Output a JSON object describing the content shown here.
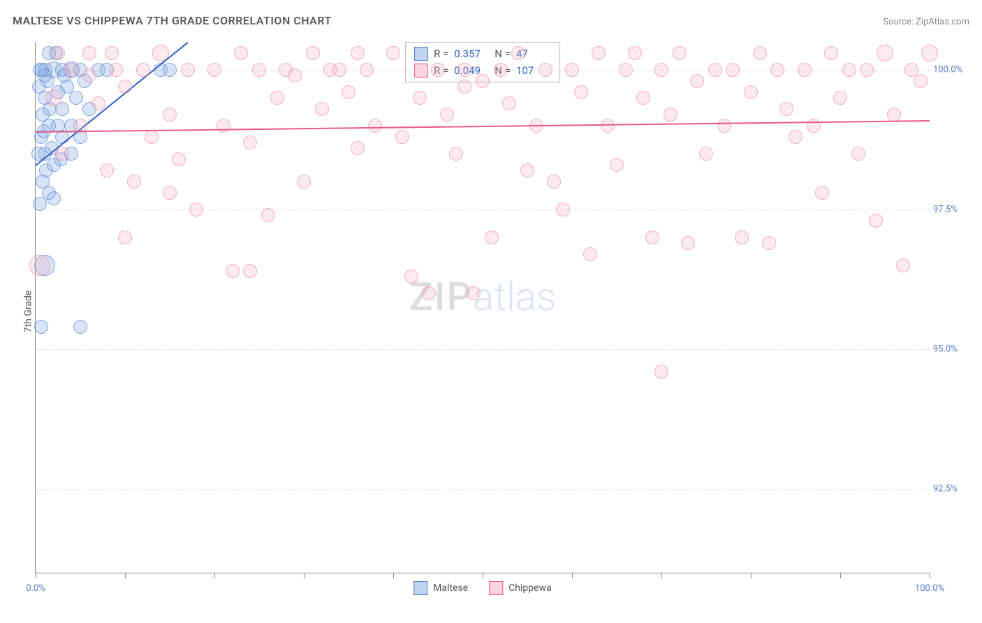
{
  "header": {
    "title": "MALTESE VS CHIPPEWA 7TH GRADE CORRELATION CHART",
    "source": "Source: ZipAtlas.com"
  },
  "chart": {
    "type": "scatter",
    "ylabel": "7th Grade",
    "xlim": [
      0,
      100
    ],
    "ylim": [
      91.0,
      100.5
    ],
    "xtick_positions": [
      0,
      10,
      20,
      30,
      40,
      50,
      60,
      70,
      80,
      90,
      100
    ],
    "xtick_labels": {
      "0": "0.0%",
      "100": "100.0%"
    },
    "ytick_positions": [
      92.5,
      95.0,
      97.5,
      100.0
    ],
    "ytick_labels": [
      "92.5%",
      "95.0%",
      "97.5%",
      "100.0%"
    ],
    "background_color": "#ffffff",
    "grid_color": "#dddddd",
    "axis_color": "#888888",
    "marker_base_radius": 9,
    "series": [
      {
        "name": "Maltese",
        "color_fill": "rgba(130,170,230,0.3)",
        "color_stroke": "rgba(100,140,210,0.7)",
        "trend_color": "#2c5fc7",
        "R": 0.357,
        "N": 47,
        "trend": {
          "x0": 0,
          "y0": 98.3,
          "x1": 17,
          "y1": 100.5
        },
        "points": [
          {
            "x": 0.5,
            "y": 100.0,
            "r": 9
          },
          {
            "x": 1.0,
            "y": 99.5,
            "r": 9
          },
          {
            "x": 0.8,
            "y": 99.2,
            "r": 9
          },
          {
            "x": 1.3,
            "y": 99.8,
            "r": 9
          },
          {
            "x": 1.5,
            "y": 99.0,
            "r": 9
          },
          {
            "x": 2.0,
            "y": 100.0,
            "r": 11
          },
          {
            "x": 2.5,
            "y": 99.6,
            "r": 9
          },
          {
            "x": 0.6,
            "y": 98.8,
            "r": 9
          },
          {
            "x": 1.0,
            "y": 98.5,
            "r": 9
          },
          {
            "x": 1.2,
            "y": 98.2,
            "r": 9
          },
          {
            "x": 1.8,
            "y": 98.6,
            "r": 9
          },
          {
            "x": 3.0,
            "y": 100.0,
            "r": 9
          },
          {
            "x": 3.5,
            "y": 99.7,
            "r": 9
          },
          {
            "x": 4.0,
            "y": 100.0,
            "r": 11
          },
          {
            "x": 4.5,
            "y": 99.5,
            "r": 9
          },
          {
            "x": 5.0,
            "y": 100.0,
            "r": 9
          },
          {
            "x": 5.5,
            "y": 99.8,
            "r": 9
          },
          {
            "x": 6.0,
            "y": 99.3,
            "r": 9
          },
          {
            "x": 7.0,
            "y": 100.0,
            "r": 9
          },
          {
            "x": 8.0,
            "y": 100.0,
            "r": 9
          },
          {
            "x": 0.8,
            "y": 98.0,
            "r": 9
          },
          {
            "x": 1.5,
            "y": 97.8,
            "r": 9
          },
          {
            "x": 2.0,
            "y": 98.3,
            "r": 9
          },
          {
            "x": 2.5,
            "y": 99.0,
            "r": 9
          },
          {
            "x": 3.0,
            "y": 98.8,
            "r": 9
          },
          {
            "x": 0.5,
            "y": 97.6,
            "r": 9
          },
          {
            "x": 1.0,
            "y": 96.5,
            "r": 14
          },
          {
            "x": 0.6,
            "y": 95.4,
            "r": 9
          },
          {
            "x": 5.0,
            "y": 95.4,
            "r": 9
          },
          {
            "x": 0.4,
            "y": 99.7,
            "r": 9
          },
          {
            "x": 0.7,
            "y": 100.0,
            "r": 9
          },
          {
            "x": 1.1,
            "y": 100.0,
            "r": 9
          },
          {
            "x": 2.3,
            "y": 100.3,
            "r": 9
          },
          {
            "x": 3.0,
            "y": 99.3,
            "r": 9
          },
          {
            "x": 4.0,
            "y": 99.0,
            "r": 9
          },
          {
            "x": 5.0,
            "y": 98.8,
            "r": 9
          },
          {
            "x": 4.0,
            "y": 98.5,
            "r": 9
          },
          {
            "x": 1.0,
            "y": 99.9,
            "r": 9
          },
          {
            "x": 1.5,
            "y": 100.3,
            "r": 9
          },
          {
            "x": 2.8,
            "y": 98.4,
            "r": 9
          },
          {
            "x": 3.2,
            "y": 99.9,
            "r": 9
          },
          {
            "x": 0.3,
            "y": 98.5,
            "r": 9
          },
          {
            "x": 14.0,
            "y": 100.0,
            "r": 9
          },
          {
            "x": 15.0,
            "y": 100.0,
            "r": 9
          },
          {
            "x": 2.0,
            "y": 97.7,
            "r": 9
          },
          {
            "x": 0.9,
            "y": 98.9,
            "r": 9
          },
          {
            "x": 1.6,
            "y": 99.3,
            "r": 9
          }
        ]
      },
      {
        "name": "Chippewa",
        "color_fill": "rgba(245,170,190,0.25)",
        "color_stroke": "rgba(235,130,160,0.6)",
        "trend_color": "#e85a8a",
        "R": 0.049,
        "N": 107,
        "trend": {
          "x0": 0,
          "y0": 98.9,
          "x1": 100,
          "y1": 99.1
        },
        "points": [
          {
            "x": 0.5,
            "y": 96.5,
            "r": 14
          },
          {
            "x": 2,
            "y": 99.5,
            "r": 11
          },
          {
            "x": 3,
            "y": 98.5,
            "r": 9
          },
          {
            "x": 4,
            "y": 100,
            "r": 9
          },
          {
            "x": 5,
            "y": 99.0,
            "r": 9
          },
          {
            "x": 6,
            "y": 100.3,
            "r": 9
          },
          {
            "x": 7,
            "y": 99.4,
            "r": 9
          },
          {
            "x": 8,
            "y": 98.2,
            "r": 9
          },
          {
            "x": 9,
            "y": 100,
            "r": 9
          },
          {
            "x": 10,
            "y": 99.7,
            "r": 9
          },
          {
            "x": 11,
            "y": 98.0,
            "r": 9
          },
          {
            "x": 12,
            "y": 100,
            "r": 9
          },
          {
            "x": 13,
            "y": 98.8,
            "r": 9
          },
          {
            "x": 14,
            "y": 100.3,
            "r": 11
          },
          {
            "x": 15,
            "y": 99.2,
            "r": 9
          },
          {
            "x": 16,
            "y": 98.4,
            "r": 9
          },
          {
            "x": 17,
            "y": 100,
            "r": 9
          },
          {
            "x": 18,
            "y": 97.5,
            "r": 9
          },
          {
            "x": 20,
            "y": 100,
            "r": 9
          },
          {
            "x": 21,
            "y": 99.0,
            "r": 9
          },
          {
            "x": 22,
            "y": 96.4,
            "r": 9
          },
          {
            "x": 23,
            "y": 100.3,
            "r": 9
          },
          {
            "x": 24,
            "y": 98.7,
            "r": 9
          },
          {
            "x": 25,
            "y": 100,
            "r": 9
          },
          {
            "x": 26,
            "y": 97.4,
            "r": 9
          },
          {
            "x": 27,
            "y": 99.5,
            "r": 9
          },
          {
            "x": 28,
            "y": 100,
            "r": 9
          },
          {
            "x": 29,
            "y": 99.9,
            "r": 9
          },
          {
            "x": 30,
            "y": 98.0,
            "r": 9
          },
          {
            "x": 31,
            "y": 100.3,
            "r": 9
          },
          {
            "x": 32,
            "y": 99.3,
            "r": 9
          },
          {
            "x": 33,
            "y": 100,
            "r": 9
          },
          {
            "x": 34,
            "y": 100,
            "r": 9
          },
          {
            "x": 35,
            "y": 99.6,
            "r": 9
          },
          {
            "x": 36,
            "y": 98.6,
            "r": 9
          },
          {
            "x": 37,
            "y": 100,
            "r": 9
          },
          {
            "x": 38,
            "y": 99.0,
            "r": 9
          },
          {
            "x": 40,
            "y": 100.3,
            "r": 9
          },
          {
            "x": 41,
            "y": 98.8,
            "r": 9
          },
          {
            "x": 42,
            "y": 96.3,
            "r": 9
          },
          {
            "x": 43,
            "y": 99.5,
            "r": 9
          },
          {
            "x": 44,
            "y": 96.0,
            "r": 9
          },
          {
            "x": 45,
            "y": 100,
            "r": 9
          },
          {
            "x": 46,
            "y": 99.2,
            "r": 9
          },
          {
            "x": 47,
            "y": 98.5,
            "r": 9
          },
          {
            "x": 48,
            "y": 100,
            "r": 9
          },
          {
            "x": 49,
            "y": 96.0,
            "r": 9
          },
          {
            "x": 50,
            "y": 99.8,
            "r": 9
          },
          {
            "x": 51,
            "y": 97.0,
            "r": 9
          },
          {
            "x": 52,
            "y": 100,
            "r": 9
          },
          {
            "x": 53,
            "y": 99.4,
            "r": 9
          },
          {
            "x": 54,
            "y": 100.3,
            "r": 9
          },
          {
            "x": 55,
            "y": 98.2,
            "r": 9
          },
          {
            "x": 56,
            "y": 99.0,
            "r": 9
          },
          {
            "x": 57,
            "y": 100,
            "r": 9
          },
          {
            "x": 58,
            "y": 98.0,
            "r": 9
          },
          {
            "x": 59,
            "y": 97.5,
            "r": 9
          },
          {
            "x": 60,
            "y": 100,
            "r": 9
          },
          {
            "x": 61,
            "y": 99.6,
            "r": 9
          },
          {
            "x": 62,
            "y": 96.7,
            "r": 9
          },
          {
            "x": 63,
            "y": 100.3,
            "r": 9
          },
          {
            "x": 64,
            "y": 99.0,
            "r": 9
          },
          {
            "x": 65,
            "y": 98.3,
            "r": 9
          },
          {
            "x": 66,
            "y": 100,
            "r": 9
          },
          {
            "x": 68,
            "y": 99.5,
            "r": 9
          },
          {
            "x": 69,
            "y": 97.0,
            "r": 9
          },
          {
            "x": 70,
            "y": 100,
            "r": 9
          },
          {
            "x": 70,
            "y": 94.6,
            "r": 9
          },
          {
            "x": 71,
            "y": 99.2,
            "r": 9
          },
          {
            "x": 72,
            "y": 100.3,
            "r": 9
          },
          {
            "x": 73,
            "y": 96.9,
            "r": 9
          },
          {
            "x": 74,
            "y": 99.8,
            "r": 9
          },
          {
            "x": 75,
            "y": 98.5,
            "r": 9
          },
          {
            "x": 76,
            "y": 100,
            "r": 9
          },
          {
            "x": 77,
            "y": 99.0,
            "r": 9
          },
          {
            "x": 78,
            "y": 100,
            "r": 9
          },
          {
            "x": 79,
            "y": 97.0,
            "r": 9
          },
          {
            "x": 80,
            "y": 99.6,
            "r": 9
          },
          {
            "x": 81,
            "y": 100.3,
            "r": 9
          },
          {
            "x": 82,
            "y": 96.9,
            "r": 9
          },
          {
            "x": 83,
            "y": 100,
            "r": 9
          },
          {
            "x": 84,
            "y": 99.3,
            "r": 9
          },
          {
            "x": 85,
            "y": 98.8,
            "r": 9
          },
          {
            "x": 86,
            "y": 100,
            "r": 9
          },
          {
            "x": 87,
            "y": 99.0,
            "r": 9
          },
          {
            "x": 88,
            "y": 97.8,
            "r": 9
          },
          {
            "x": 89,
            "y": 100.3,
            "r": 9
          },
          {
            "x": 90,
            "y": 99.5,
            "r": 9
          },
          {
            "x": 91,
            "y": 100,
            "r": 9
          },
          {
            "x": 92,
            "y": 98.5,
            "r": 9
          },
          {
            "x": 93,
            "y": 100,
            "r": 9
          },
          {
            "x": 94,
            "y": 97.3,
            "r": 9
          },
          {
            "x": 95,
            "y": 100.3,
            "r": 11
          },
          {
            "x": 96,
            "y": 99.2,
            "r": 9
          },
          {
            "x": 97,
            "y": 96.5,
            "r": 9
          },
          {
            "x": 98,
            "y": 100,
            "r": 9
          },
          {
            "x": 99,
            "y": 99.8,
            "r": 9
          },
          {
            "x": 100,
            "y": 100.3,
            "r": 11
          },
          {
            "x": 15,
            "y": 97.8,
            "r": 9
          },
          {
            "x": 10,
            "y": 97.0,
            "r": 9
          },
          {
            "x": 6,
            "y": 99.9,
            "r": 9
          },
          {
            "x": 24,
            "y": 96.4,
            "r": 9
          },
          {
            "x": 36,
            "y": 100.3,
            "r": 9
          },
          {
            "x": 48,
            "y": 99.7,
            "r": 9
          },
          {
            "x": 67,
            "y": 100.3,
            "r": 9
          },
          {
            "x": 2.5,
            "y": 100.3,
            "r": 9
          },
          {
            "x": 8.5,
            "y": 100.3,
            "r": 9
          }
        ]
      }
    ]
  },
  "stats_box": {
    "rows": [
      {
        "swatch": "blue",
        "r_label": "R =",
        "r_val": "0.357",
        "n_label": "N =",
        "n_val": "47"
      },
      {
        "swatch": "pink",
        "r_label": "R =",
        "r_val": "0.049",
        "n_label": "N =",
        "n_val": "107"
      }
    ]
  },
  "legend": {
    "items": [
      {
        "swatch": "blue",
        "label": "Maltese"
      },
      {
        "swatch": "pink",
        "label": "Chippewa"
      }
    ]
  },
  "watermark": {
    "part1": "ZIP",
    "part2": "atlas"
  }
}
